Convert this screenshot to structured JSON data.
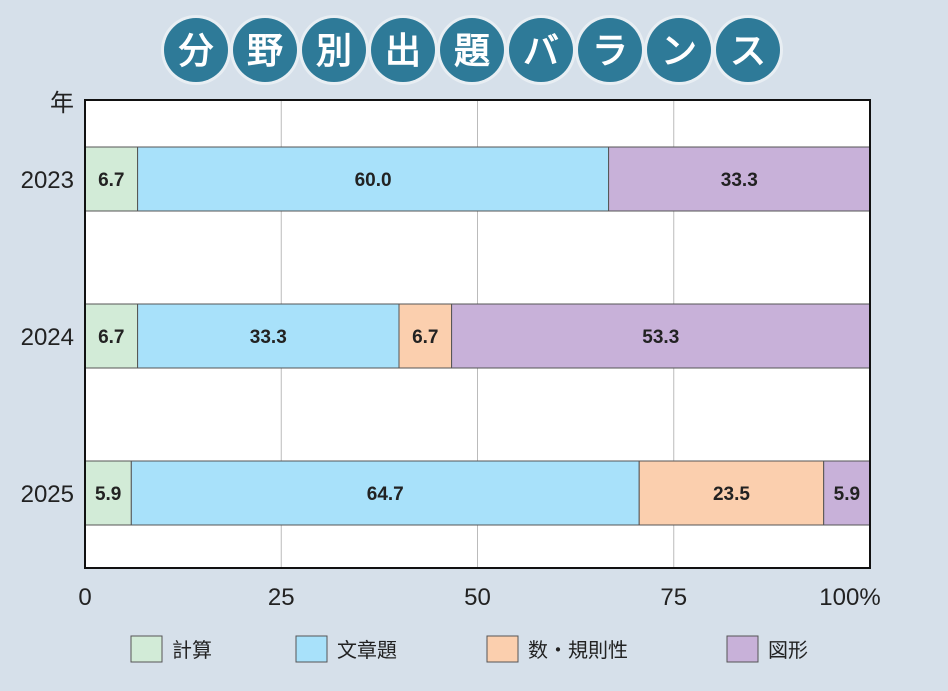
{
  "chart_data": {
    "type": "bar",
    "orientation": "horizontal",
    "stacked": true,
    "title": "分野別出題バランス",
    "ylabel": "年",
    "xlabel": "",
    "x_unit": "%",
    "xlim": [
      0,
      100
    ],
    "x_ticks": [
      "0",
      "25",
      "50",
      "75",
      "100%"
    ],
    "x_tick_values": [
      0,
      25,
      50,
      75,
      100
    ],
    "grid": true,
    "legend_position": "bottom",
    "categories": [
      "2023",
      "2024",
      "2025"
    ],
    "series": [
      {
        "name": "計算",
        "color": "#d2ebd7",
        "values": [
          6.7,
          6.7,
          5.9
        ],
        "labels": [
          "6.7",
          "6.7",
          "5.9"
        ]
      },
      {
        "name": "文章題",
        "color": "#a8e1fa",
        "values": [
          60.0,
          33.3,
          64.7
        ],
        "labels": [
          "60.0",
          "33.3",
          "64.7"
        ]
      },
      {
        "name": "数・規則性",
        "color": "#fbcfae",
        "values": [
          0,
          6.7,
          23.5
        ],
        "labels": [
          "",
          "6.7",
          "23.5"
        ]
      },
      {
        "name": "図形",
        "color": "#c8b1d9",
        "values": [
          33.3,
          53.3,
          5.9
        ],
        "labels": [
          "33.3",
          "53.3",
          "5.9"
        ]
      }
    ]
  },
  "colors": {
    "background": "#d6e0ea",
    "title_circle": "#2e7a98",
    "title_circle_ring": "#e8eef3",
    "plot_background": "#ffffff",
    "grid": "#bbbbbb"
  }
}
